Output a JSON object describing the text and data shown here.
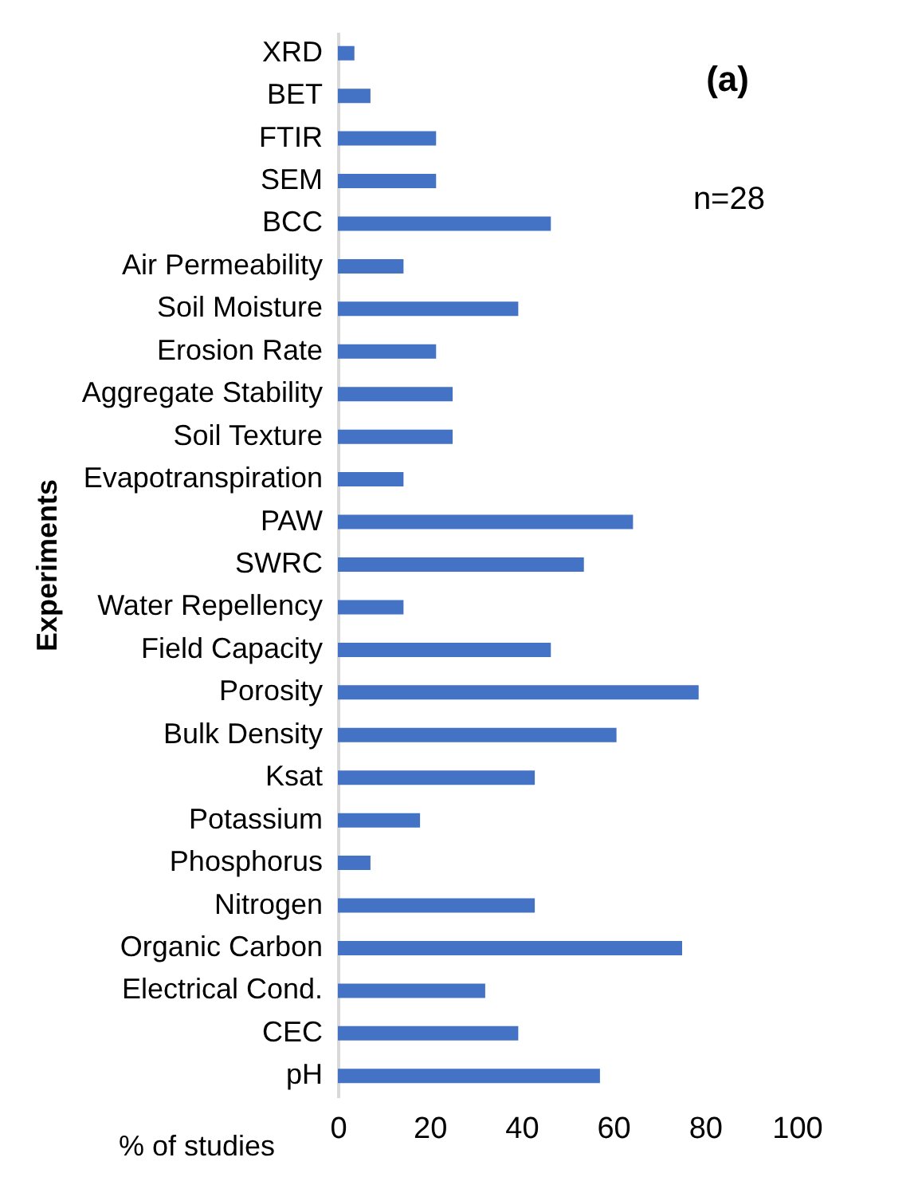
{
  "chart_data": {
    "type": "bar",
    "orientation": "horizontal",
    "xlabel": "% of studies",
    "ylabel": "Experiments",
    "categories": [
      "XRD",
      "BET",
      "FTIR",
      "SEM",
      "BCC",
      "Air Permeability",
      "Soil Moisture",
      "Erosion Rate",
      "Aggregate Stability",
      "Soil Texture",
      "Evapotranspiration",
      "PAW",
      "SWRC",
      "Water Repellency",
      "Field Capacity",
      "Porosity",
      "Bulk Density",
      "Ksat",
      "Potassium",
      "Phosphorus",
      "Nitrogen",
      "Organic Carbon",
      "Electrical Cond.",
      "CEC",
      "pH"
    ],
    "values": [
      3.6,
      7.1,
      21.4,
      21.4,
      46.4,
      14.3,
      39.3,
      21.4,
      25,
      25,
      14.3,
      64.3,
      53.6,
      14.3,
      46.4,
      78.6,
      60.7,
      42.9,
      17.9,
      7.1,
      42.9,
      75,
      32.1,
      39.3,
      57.1
    ],
    "color": "#4472c4",
    "xlim": [
      0,
      100
    ],
    "xticks": [
      0,
      20,
      40,
      60,
      80,
      100
    ],
    "grid": false,
    "annotations": [
      "(a)",
      "n=28"
    ]
  }
}
